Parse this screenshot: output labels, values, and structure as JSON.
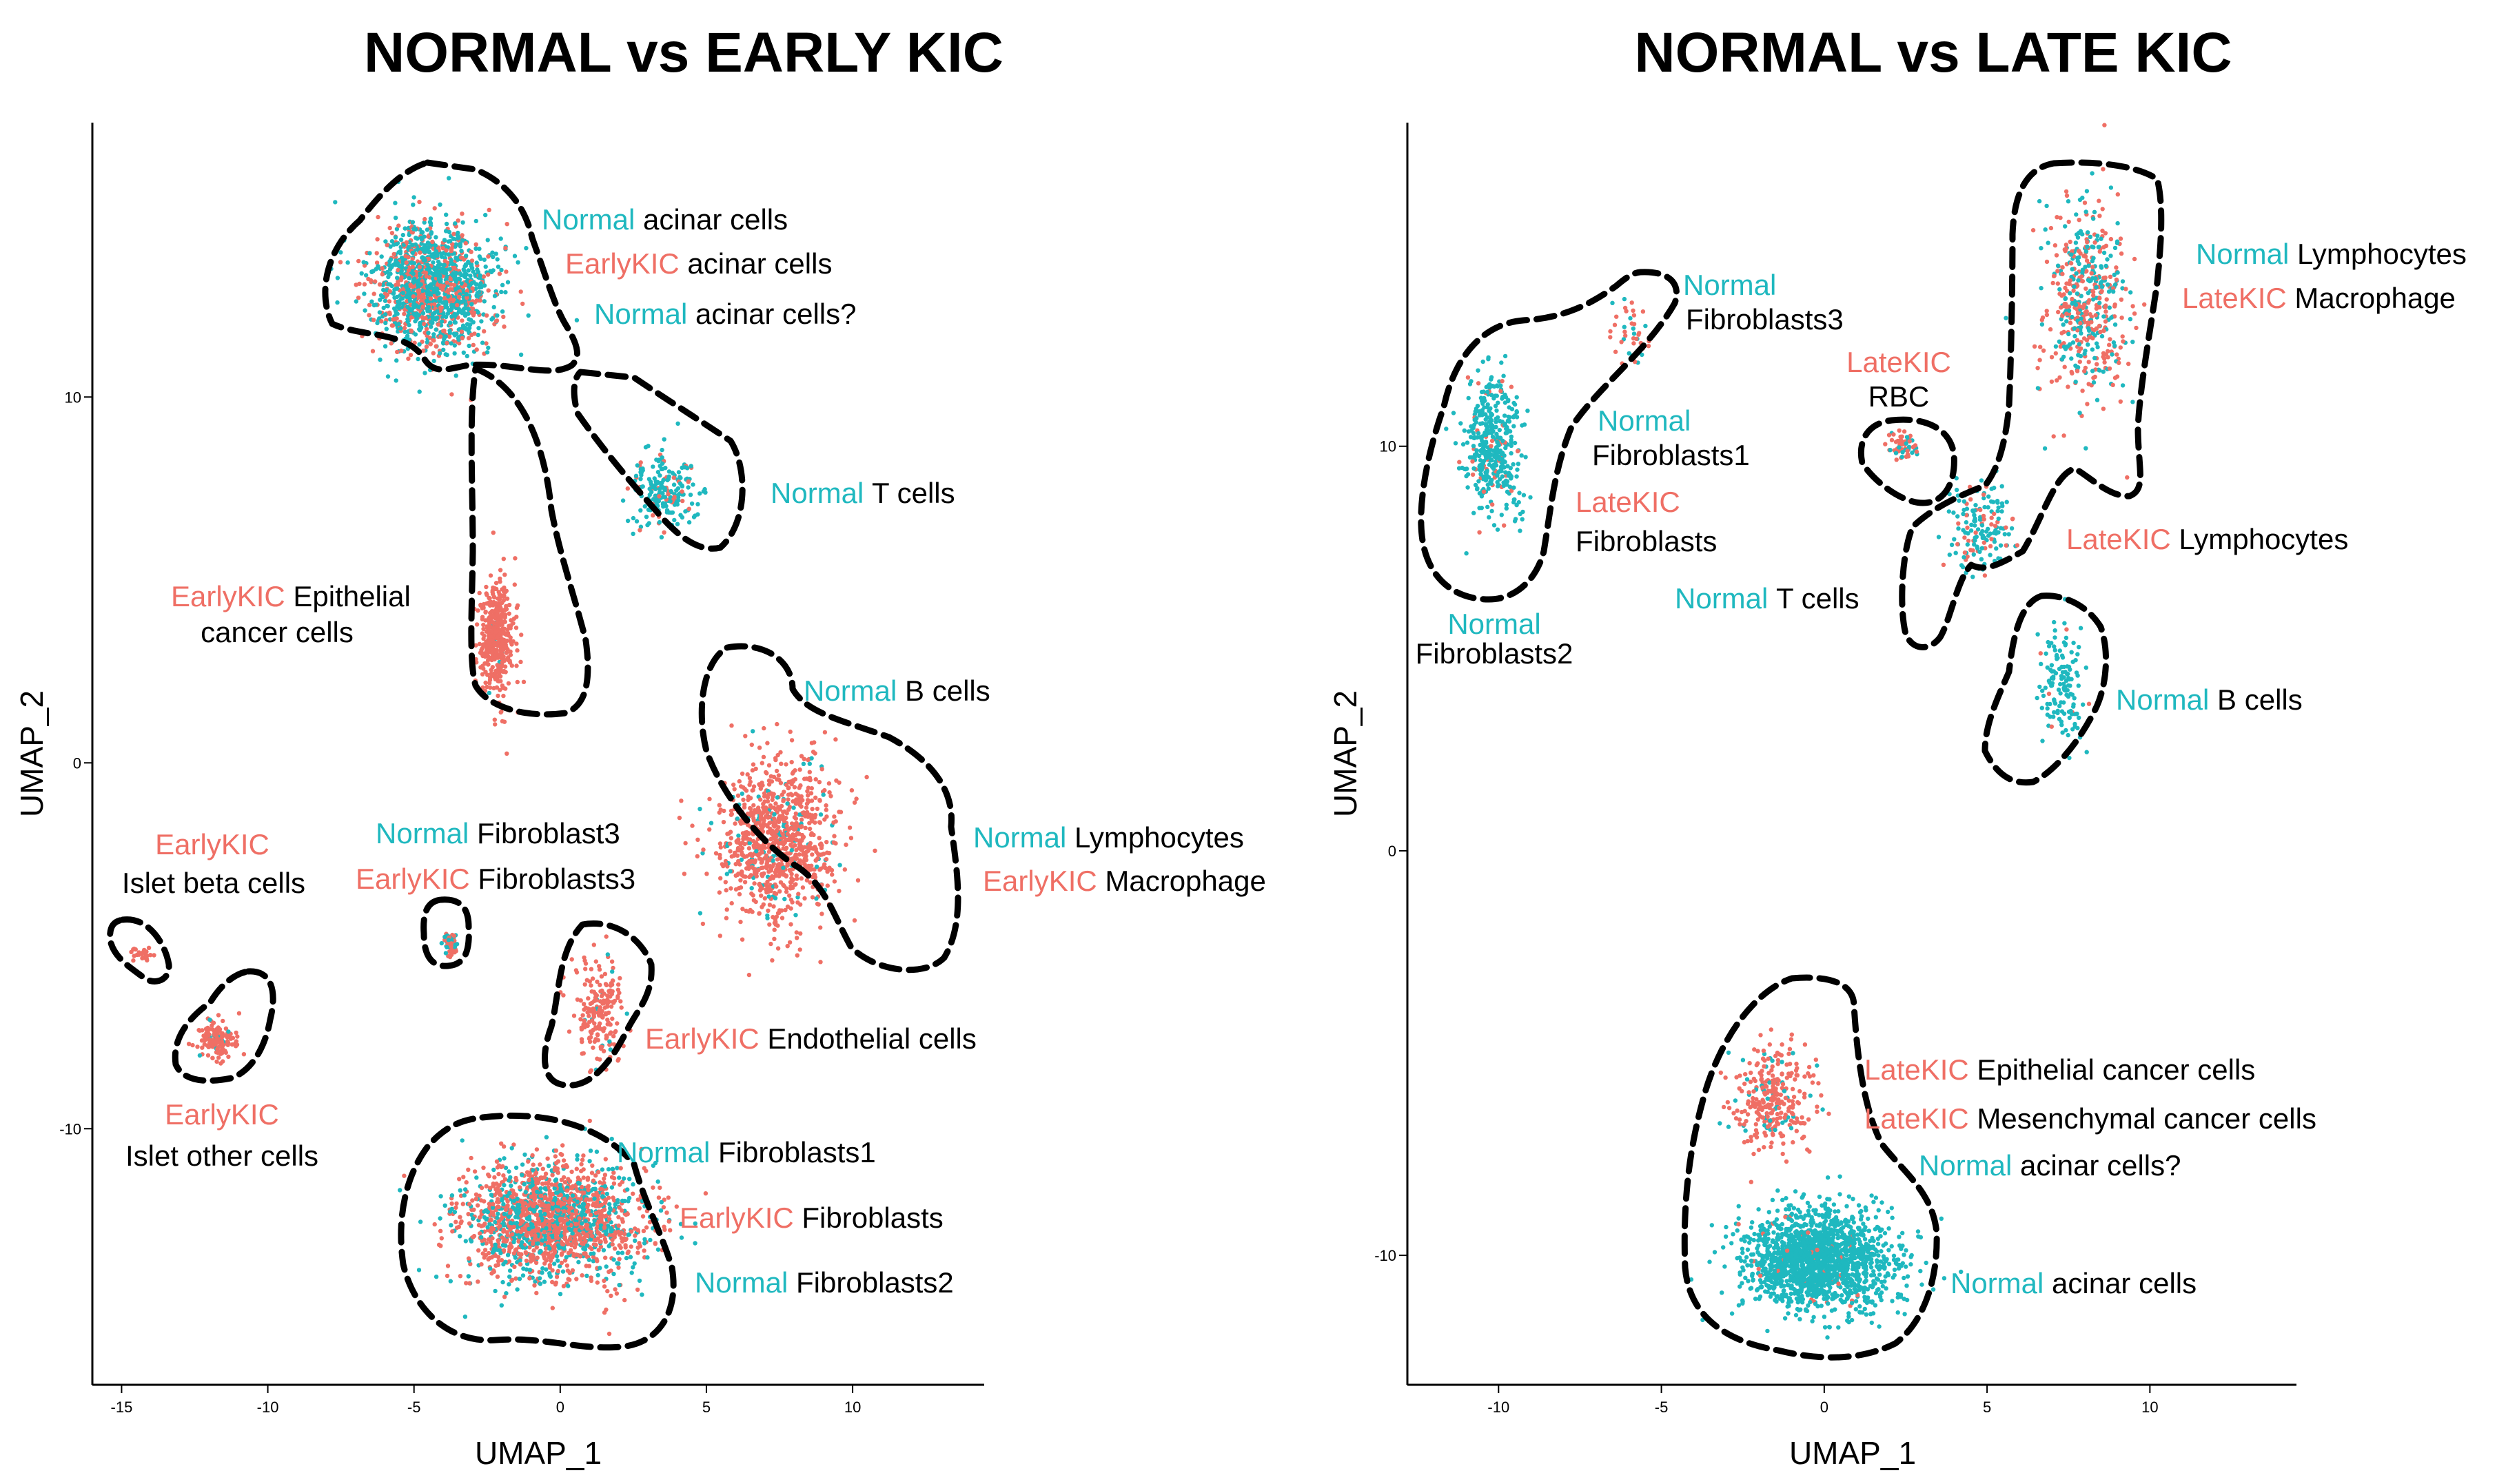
{
  "colors": {
    "normal": "#1fb8bf",
    "early": "#ef6f65",
    "text": "#000000"
  },
  "chart_data": [
    {
      "type": "scatter",
      "title": "NORMAL vs EARLY KIC",
      "xlabel": "UMAP_1",
      "ylabel": "UMAP_2",
      "xlim": [
        -16,
        14.5
      ],
      "ylim": [
        -17,
        17.5
      ],
      "xticks": [
        -15,
        -10,
        -5,
        0,
        5,
        10
      ],
      "yticks": [
        -10,
        0,
        10
      ],
      "legend_groups": [
        "Normal",
        "EarlyKIC"
      ],
      "clusters": [
        {
          "cx": -4.4,
          "cy": 13.0,
          "sx": 1.9,
          "sy": 1.6,
          "n": 1400,
          "normal": 0.62
        },
        {
          "cx": 3.6,
          "cy": 7.4,
          "sx": 1.0,
          "sy": 0.9,
          "n": 220,
          "normal": 0.85
        },
        {
          "cx": -2.2,
          "cy": 3.4,
          "sx": 0.55,
          "sy": 1.6,
          "n": 420,
          "normal": 0.03
        },
        {
          "cx": 7.5,
          "cy": -2.2,
          "sx": 1.8,
          "sy": 2.0,
          "n": 950,
          "normal": 0.1
        },
        {
          "cx": -3.8,
          "cy": -4.9,
          "sx": 0.25,
          "sy": 0.35,
          "n": 60,
          "normal": 0.35
        },
        {
          "cx": 1.3,
          "cy": -6.8,
          "sx": 0.75,
          "sy": 1.2,
          "n": 200,
          "normal": 0.06
        },
        {
          "cx": -14.3,
          "cy": -5.2,
          "sx": 0.3,
          "sy": 0.25,
          "n": 25,
          "normal": 0.0
        },
        {
          "cx": -11.7,
          "cy": -7.6,
          "sx": 0.6,
          "sy": 0.45,
          "n": 150,
          "normal": 0.07
        },
        {
          "cx": -0.3,
          "cy": -12.5,
          "sx": 2.8,
          "sy": 1.4,
          "n": 1800,
          "normal": 0.38
        }
      ],
      "annotations": [
        {
          "parts": [
            {
              "text": "Normal",
              "group": "normal"
            },
            {
              "text": " acinar cells",
              "group": "text"
            }
          ]
        },
        {
          "parts": [
            {
              "text": "EarlyKIC",
              "group": "early"
            },
            {
              "text": " acinar cells",
              "group": "text"
            }
          ]
        },
        {
          "parts": [
            {
              "text": "Normal",
              "group": "normal"
            },
            {
              "text": " acinar cells?",
              "group": "text"
            }
          ]
        },
        {
          "parts": [
            {
              "text": "Normal",
              "group": "normal"
            },
            {
              "text": " T cells",
              "group": "text"
            }
          ]
        },
        {
          "parts": [
            {
              "text": "EarlyKIC",
              "group": "early"
            },
            {
              "text": " Epithelial",
              "group": "text"
            }
          ]
        },
        {
          "parts": [
            {
              "text": "cancer cells",
              "group": "text"
            }
          ]
        },
        {
          "parts": [
            {
              "text": "Normal",
              "group": "normal"
            },
            {
              "text": " B cells",
              "group": "text"
            }
          ]
        },
        {
          "parts": [
            {
              "text": "EarlyKIC",
              "group": "early"
            }
          ]
        },
        {
          "parts": [
            {
              "text": "Islet beta cells",
              "group": "text"
            }
          ]
        },
        {
          "parts": [
            {
              "text": "Normal",
              "group": "normal"
            },
            {
              "text": " Fibroblast3",
              "group": "text"
            }
          ]
        },
        {
          "parts": [
            {
              "text": "EarlyKIC",
              "group": "early"
            },
            {
              "text": " Fibroblasts3",
              "group": "text"
            }
          ]
        },
        {
          "parts": [
            {
              "text": "Normal",
              "group": "normal"
            },
            {
              "text": " Lymphocytes",
              "group": "text"
            }
          ]
        },
        {
          "parts": [
            {
              "text": "EarlyKIC",
              "group": "early"
            },
            {
              "text": " Macrophage",
              "group": "text"
            }
          ]
        },
        {
          "parts": [
            {
              "text": "EarlyKIC",
              "group": "early"
            },
            {
              "text": " Endothelial cells",
              "group": "text"
            }
          ]
        },
        {
          "parts": [
            {
              "text": "EarlyKIC",
              "group": "early"
            }
          ]
        },
        {
          "parts": [
            {
              "text": "Islet other cells",
              "group": "text"
            }
          ]
        },
        {
          "parts": [
            {
              "text": "Normal",
              "group": "normal"
            },
            {
              "text": " Fibroblasts1",
              "group": "text"
            }
          ]
        },
        {
          "parts": [
            {
              "text": "EarlyKIC",
              "group": "early"
            },
            {
              "text": " Fibroblasts",
              "group": "text"
            }
          ]
        },
        {
          "parts": [
            {
              "text": "Normal",
              "group": "normal"
            },
            {
              "text": " Fibroblasts2",
              "group": "text"
            }
          ]
        }
      ]
    },
    {
      "type": "scatter",
      "title": "NORMAL vs LATE KIC",
      "xlabel": "UMAP_1",
      "ylabel": "UMAP_2",
      "xlim": [
        -12.8,
        14.5
      ],
      "ylim": [
        -13.2,
        18
      ],
      "xticks": [
        -10,
        -5,
        0,
        5,
        10
      ],
      "yticks": [
        -10,
        0,
        10
      ],
      "legend_groups": [
        "Normal",
        "LateKIC"
      ],
      "clusters": [
        {
          "cx": -10.2,
          "cy": 10.0,
          "sx": 0.8,
          "sy": 1.6,
          "n": 420,
          "normal": 0.9
        },
        {
          "cx": -6.0,
          "cy": 12.8,
          "sx": 0.6,
          "sy": 0.7,
          "n": 40,
          "normal": 0.4
        },
        {
          "cx": 2.4,
          "cy": 10.0,
          "sx": 0.45,
          "sy": 0.35,
          "n": 60,
          "normal": 0.3
        },
        {
          "cx": 8.0,
          "cy": 13.5,
          "sx": 1.2,
          "sy": 2.2,
          "n": 500,
          "normal": 0.4
        },
        {
          "cx": 4.8,
          "cy": 8.0,
          "sx": 0.9,
          "sy": 1.0,
          "n": 160,
          "normal": 0.75
        },
        {
          "cx": 7.3,
          "cy": 4.0,
          "sx": 0.6,
          "sy": 1.2,
          "n": 140,
          "normal": 0.97
        },
        {
          "cx": -0.2,
          "cy": -10.1,
          "sx": 2.0,
          "sy": 1.1,
          "n": 1700,
          "normal": 0.98
        },
        {
          "cx": -1.6,
          "cy": -6.2,
          "sx": 1.2,
          "sy": 1.1,
          "n": 300,
          "normal": 0.15
        }
      ],
      "annotations": [
        {
          "parts": [
            {
              "text": "Normal",
              "group": "normal"
            }
          ]
        },
        {
          "parts": [
            {
              "text": "Fibroblasts3",
              "group": "text"
            }
          ]
        },
        {
          "parts": [
            {
              "text": "LateKIC",
              "group": "early"
            }
          ]
        },
        {
          "parts": [
            {
              "text": "RBC",
              "group": "text"
            }
          ]
        },
        {
          "parts": [
            {
              "text": "Normal",
              "group": "normal"
            },
            {
              "text": " Lymphocytes",
              "group": "text"
            }
          ]
        },
        {
          "parts": [
            {
              "text": "LateKIC",
              "group": "early"
            },
            {
              "text": " Macrophage",
              "group": "text"
            }
          ]
        },
        {
          "parts": [
            {
              "text": "Normal",
              "group": "normal"
            }
          ]
        },
        {
          "parts": [
            {
              "text": "Fibroblasts1",
              "group": "text"
            }
          ]
        },
        {
          "parts": [
            {
              "text": "LateKIC",
              "group": "early"
            }
          ]
        },
        {
          "parts": [
            {
              "text": "Fibroblasts",
              "group": "text"
            }
          ]
        },
        {
          "parts": [
            {
              "text": "LateKIC",
              "group": "early"
            },
            {
              "text": " Lymphocytes",
              "group": "text"
            }
          ]
        },
        {
          "parts": [
            {
              "text": "Normal",
              "group": "normal"
            },
            {
              "text": " T cells",
              "group": "text"
            }
          ]
        },
        {
          "parts": [
            {
              "text": "Normal",
              "group": "normal"
            }
          ]
        },
        {
          "parts": [
            {
              "text": "Fibroblasts2",
              "group": "text"
            }
          ]
        },
        {
          "parts": [
            {
              "text": "Normal",
              "group": "normal"
            },
            {
              "text": " B cells",
              "group": "text"
            }
          ]
        },
        {
          "parts": [
            {
              "text": "LateKIC",
              "group": "early"
            },
            {
              "text": " Epithelial cancer cells",
              "group": "text"
            }
          ]
        },
        {
          "parts": [
            {
              "text": "LateKIC",
              "group": "early"
            },
            {
              "text": " Mesenchymal cancer cells",
              "group": "text"
            }
          ]
        },
        {
          "parts": [
            {
              "text": "Normal",
              "group": "normal"
            },
            {
              "text": " acinar cells?",
              "group": "text"
            }
          ]
        },
        {
          "parts": [
            {
              "text": "Normal",
              "group": "normal"
            },
            {
              "text": " acinar cells",
              "group": "text"
            }
          ]
        }
      ]
    }
  ]
}
